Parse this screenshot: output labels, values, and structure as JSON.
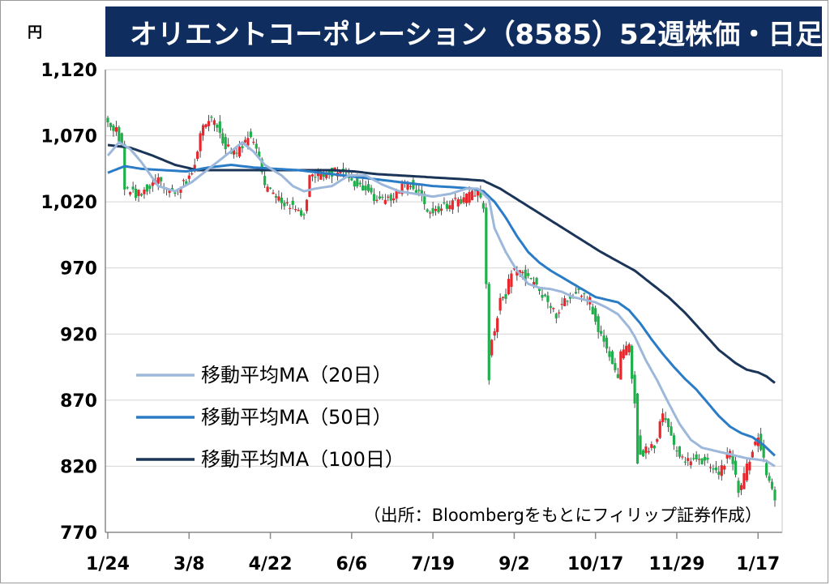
{
  "header": {
    "title": "オリエントコーポレーション（8585）52週株価・日足",
    "unit": "円"
  },
  "source_note": "（出所：Bloombergをもとにフィリップ証券作成）",
  "colors": {
    "title_bg": "#0f2e5f",
    "up": "#e8262b",
    "down": "#1fb04c",
    "ma20": "#9db8db",
    "ma50": "#2a7cc6",
    "ma100": "#1b3558"
  },
  "chart_data": {
    "type": "candlestick",
    "xlabel": "",
    "ylabel": "円",
    "ylim": [
      770,
      1120
    ],
    "yticks": [
      770,
      820,
      870,
      920,
      970,
      1020,
      1070,
      1120
    ],
    "ytick_labels": [
      "770",
      "820",
      "870",
      "920",
      "970",
      "1,020",
      "1,070",
      "1,120"
    ],
    "xticks": [
      {
        "label": "1/24",
        "index": 0
      },
      {
        "label": "3/8",
        "index": 29
      },
      {
        "label": "4/22",
        "index": 58
      },
      {
        "label": "6/6",
        "index": 87
      },
      {
        "label": "7/19",
        "index": 116
      },
      {
        "label": "9/2",
        "index": 145
      },
      {
        "label": "10/17",
        "index": 174
      },
      {
        "label": "11/29",
        "index": 203
      },
      {
        "label": "1/17",
        "index": 232
      }
    ],
    "grid": true,
    "legend_position": "bottom-left",
    "series": [
      {
        "name": "移動平均MA（20日）",
        "key": "ma20"
      },
      {
        "name": "移動平均MA（50日）",
        "key": "ma50"
      },
      {
        "name": "移動平均MA（100日）",
        "key": "ma100"
      }
    ],
    "close_anchors": [
      [
        0,
        1080
      ],
      [
        3,
        1075
      ],
      [
        5,
        1062
      ],
      [
        6,
        1030
      ],
      [
        10,
        1025
      ],
      [
        14,
        1030
      ],
      [
        18,
        1035
      ],
      [
        22,
        1028
      ],
      [
        25,
        1030
      ],
      [
        28,
        1035
      ],
      [
        30,
        1040
      ],
      [
        34,
        1080
      ],
      [
        38,
        1082
      ],
      [
        42,
        1062
      ],
      [
        46,
        1055
      ],
      [
        50,
        1070
      ],
      [
        54,
        1055
      ],
      [
        56,
        1030
      ],
      [
        60,
        1025
      ],
      [
        64,
        1018
      ],
      [
        68,
        1015
      ],
      [
        70,
        1010
      ],
      [
        72,
        1040
      ],
      [
        76,
        1040
      ],
      [
        80,
        1042
      ],
      [
        84,
        1045
      ],
      [
        88,
        1035
      ],
      [
        92,
        1030
      ],
      [
        96,
        1020
      ],
      [
        100,
        1022
      ],
      [
        104,
        1030
      ],
      [
        108,
        1035
      ],
      [
        112,
        1025
      ],
      [
        114,
        1012
      ],
      [
        118,
        1015
      ],
      [
        122,
        1018
      ],
      [
        126,
        1022
      ],
      [
        130,
        1025
      ],
      [
        132,
        1030
      ],
      [
        134,
        1012
      ],
      [
        135,
        958
      ],
      [
        136,
        908
      ],
      [
        138,
        922
      ],
      [
        140,
        945
      ],
      [
        142,
        950
      ],
      [
        144,
        968
      ],
      [
        148,
        965
      ],
      [
        152,
        958
      ],
      [
        156,
        948
      ],
      [
        160,
        935
      ],
      [
        164,
        948
      ],
      [
        168,
        952
      ],
      [
        172,
        945
      ],
      [
        174,
        930
      ],
      [
        178,
        908
      ],
      [
        180,
        898
      ],
      [
        182,
        890
      ],
      [
        183,
        905
      ],
      [
        186,
        910
      ],
      [
        189,
        845
      ],
      [
        190,
        830
      ],
      [
        192,
        832
      ],
      [
        195,
        835
      ],
      [
        198,
        860
      ],
      [
        201,
        840
      ],
      [
        205,
        825
      ],
      [
        210,
        825
      ],
      [
        215,
        822
      ],
      [
        218,
        815
      ],
      [
        222,
        832
      ],
      [
        225,
        800
      ],
      [
        228,
        820
      ],
      [
        232,
        845
      ],
      [
        234,
        825
      ],
      [
        236,
        808
      ],
      [
        238,
        797
      ]
    ],
    "ma20_anchors": [
      [
        0,
        1055
      ],
      [
        4,
        1065
      ],
      [
        8,
        1060
      ],
      [
        12,
        1050
      ],
      [
        18,
        1032
      ],
      [
        24,
        1028
      ],
      [
        30,
        1035
      ],
      [
        36,
        1045
      ],
      [
        42,
        1055
      ],
      [
        48,
        1065
      ],
      [
        52,
        1058
      ],
      [
        56,
        1048
      ],
      [
        62,
        1040
      ],
      [
        66,
        1032
      ],
      [
        70,
        1028
      ],
      [
        74,
        1030
      ],
      [
        80,
        1032
      ],
      [
        86,
        1040
      ],
      [
        92,
        1040
      ],
      [
        98,
        1033
      ],
      [
        104,
        1028
      ],
      [
        110,
        1026
      ],
      [
        116,
        1024
      ],
      [
        122,
        1026
      ],
      [
        128,
        1030
      ],
      [
        132,
        1030
      ],
      [
        136,
        1022
      ],
      [
        138,
        1000
      ],
      [
        142,
        982
      ],
      [
        146,
        968
      ],
      [
        150,
        958
      ],
      [
        154,
        955
      ],
      [
        158,
        954
      ],
      [
        162,
        952
      ],
      [
        166,
        948
      ],
      [
        170,
        946
      ],
      [
        174,
        944
      ],
      [
        178,
        940
      ],
      [
        182,
        935
      ],
      [
        186,
        925
      ],
      [
        188,
        918
      ],
      [
        192,
        900
      ],
      [
        196,
        885
      ],
      [
        200,
        868
      ],
      [
        204,
        852
      ],
      [
        208,
        840
      ],
      [
        212,
        834
      ],
      [
        216,
        832
      ],
      [
        220,
        830
      ],
      [
        224,
        828
      ],
      [
        228,
        826
      ],
      [
        232,
        825
      ],
      [
        235,
        824
      ],
      [
        238,
        820
      ]
    ],
    "ma50_anchors": [
      [
        0,
        1042
      ],
      [
        6,
        1047
      ],
      [
        12,
        1045
      ],
      [
        20,
        1044
      ],
      [
        28,
        1043
      ],
      [
        36,
        1046
      ],
      [
        44,
        1048
      ],
      [
        52,
        1046
      ],
      [
        60,
        1045
      ],
      [
        68,
        1044
      ],
      [
        76,
        1042
      ],
      [
        84,
        1040
      ],
      [
        92,
        1038
      ],
      [
        100,
        1036
      ],
      [
        108,
        1034
      ],
      [
        116,
        1032
      ],
      [
        124,
        1031
      ],
      [
        130,
        1030
      ],
      [
        134,
        1028
      ],
      [
        138,
        1020
      ],
      [
        142,
        1008
      ],
      [
        146,
        994
      ],
      [
        150,
        982
      ],
      [
        154,
        974
      ],
      [
        158,
        968
      ],
      [
        162,
        963
      ],
      [
        166,
        958
      ],
      [
        170,
        953
      ],
      [
        174,
        948
      ],
      [
        178,
        946
      ],
      [
        182,
        944
      ],
      [
        186,
        938
      ],
      [
        190,
        928
      ],
      [
        194,
        916
      ],
      [
        198,
        905
      ],
      [
        202,
        895
      ],
      [
        206,
        886
      ],
      [
        210,
        878
      ],
      [
        214,
        868
      ],
      [
        218,
        858
      ],
      [
        222,
        850
      ],
      [
        226,
        845
      ],
      [
        230,
        842
      ],
      [
        234,
        836
      ],
      [
        238,
        828
      ]
    ],
    "ma100_anchors": [
      [
        0,
        1063
      ],
      [
        8,
        1061
      ],
      [
        16,
        1055
      ],
      [
        24,
        1048
      ],
      [
        32,
        1044
      ],
      [
        40,
        1044
      ],
      [
        48,
        1044
      ],
      [
        56,
        1044
      ],
      [
        64,
        1044
      ],
      [
        72,
        1044
      ],
      [
        80,
        1044
      ],
      [
        88,
        1043
      ],
      [
        96,
        1041
      ],
      [
        104,
        1040
      ],
      [
        112,
        1039
      ],
      [
        120,
        1038
      ],
      [
        128,
        1037
      ],
      [
        134,
        1036
      ],
      [
        140,
        1030
      ],
      [
        146,
        1022
      ],
      [
        152,
        1014
      ],
      [
        158,
        1006
      ],
      [
        164,
        998
      ],
      [
        170,
        990
      ],
      [
        176,
        982
      ],
      [
        182,
        975
      ],
      [
        188,
        968
      ],
      [
        194,
        958
      ],
      [
        200,
        948
      ],
      [
        206,
        936
      ],
      [
        212,
        922
      ],
      [
        218,
        908
      ],
      [
        224,
        898
      ],
      [
        228,
        893
      ],
      [
        232,
        891
      ],
      [
        235,
        888
      ],
      [
        238,
        883
      ]
    ]
  }
}
